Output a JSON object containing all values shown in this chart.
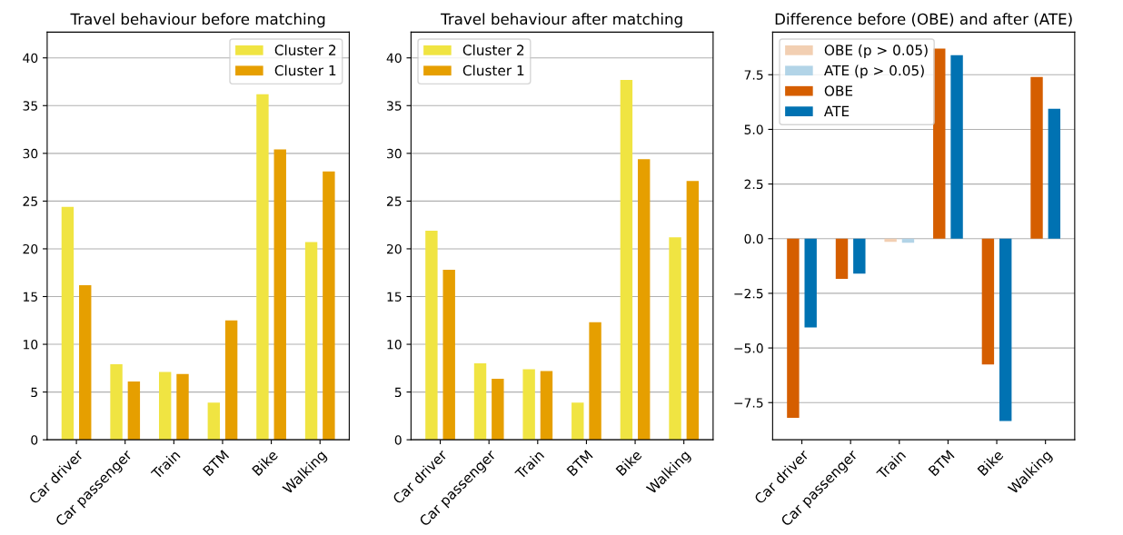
{
  "chart_data": [
    {
      "type": "bar",
      "title": "Travel behaviour before matching",
      "categories": [
        "Car driver",
        "Car passenger",
        "Train",
        "BTM",
        "Bike",
        "Walking"
      ],
      "ylim": [
        0,
        42.7
      ],
      "yticks": [
        0,
        5,
        10,
        15,
        20,
        25,
        30,
        35,
        40
      ],
      "grid": "y",
      "legend": "top right",
      "series": [
        {
          "name": "Cluster 2",
          "color": "#f0e442",
          "values": [
            24.4,
            7.9,
            7.1,
            3.9,
            36.2,
            20.7
          ]
        },
        {
          "name": "Cluster 1",
          "color": "#e69f00",
          "values": [
            16.2,
            6.1,
            6.9,
            12.5,
            30.4,
            28.1
          ]
        }
      ]
    },
    {
      "type": "bar",
      "title": "Travel behaviour after matching",
      "categories": [
        "Car driver",
        "Car passenger",
        "Train",
        "BTM",
        "Bike",
        "Walking"
      ],
      "ylim": [
        0,
        42.7
      ],
      "yticks": [
        0,
        5,
        10,
        15,
        20,
        25,
        30,
        35,
        40
      ],
      "grid": "y",
      "legend": "top left",
      "series": [
        {
          "name": "Cluster 2",
          "color": "#f0e442",
          "values": [
            21.9,
            8.0,
            7.4,
            3.9,
            37.7,
            21.2
          ]
        },
        {
          "name": "Cluster 1",
          "color": "#e69f00",
          "values": [
            17.8,
            6.4,
            7.2,
            12.3,
            29.4,
            27.1
          ]
        }
      ]
    },
    {
      "type": "bar",
      "title": "Difference before (OBE) and after (ATE)",
      "categories": [
        "Car driver",
        "Car passenger",
        "Train",
        "BTM",
        "Bike",
        "Walking"
      ],
      "ylim": [
        -9.2,
        9.45
      ],
      "yticks": [
        {
          "value": -7.5,
          "label": "−7.5"
        },
        {
          "value": -5,
          "label": "−5.0"
        },
        {
          "value": -2.5,
          "label": "−2.5"
        },
        {
          "value": 0,
          "label": "0.0"
        },
        {
          "value": 2.5,
          "label": "2.5"
        },
        {
          "value": 5,
          "label": "5.0"
        },
        {
          "value": 7.5,
          "label": "7.5"
        }
      ],
      "grid": "y",
      "legend": "top left",
      "series": [
        {
          "name": "OBE (p > 0.05)",
          "color": "#f2cfb2",
          "values": [
            null,
            null,
            -0.14,
            null,
            null,
            null
          ]
        },
        {
          "name": "ATE (p > 0.05)",
          "color": "#b2d4e7",
          "values": [
            null,
            null,
            -0.19,
            null,
            null,
            null
          ]
        },
        {
          "name": "OBE",
          "color": "#d55e00",
          "values": [
            -8.2,
            -1.84,
            null,
            8.7,
            -5.75,
            7.4
          ]
        },
        {
          "name": "ATE",
          "color": "#0072b2",
          "values": [
            -4.06,
            -1.6,
            null,
            8.39,
            -8.34,
            5.94
          ]
        }
      ]
    }
  ]
}
